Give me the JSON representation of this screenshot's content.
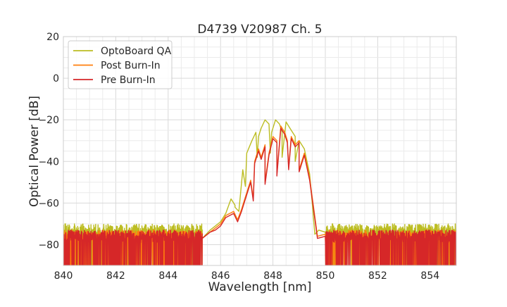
{
  "chart_data": {
    "type": "line",
    "title": "D4739 V20987 Ch. 5",
    "xlabel": "Wavelength [nm]",
    "ylabel": "Optical Power [dB]",
    "xlim": [
      840,
      855
    ],
    "ylim": [
      -90,
      20
    ],
    "xticks": [
      840,
      842,
      844,
      846,
      848,
      850,
      852,
      854
    ],
    "yticks": [
      20,
      0,
      -20,
      -40,
      -60,
      -80
    ],
    "xtick_labels": [
      "840",
      "842",
      "844",
      "846",
      "848",
      "850",
      "852",
      "854"
    ],
    "ytick_labels": [
      "20",
      "0",
      "−20",
      "−40",
      "−60",
      "−80"
    ],
    "grid": true,
    "legend_position": "top-left",
    "noise_floor_db": -76,
    "series": [
      {
        "name": "OptoBoard QA",
        "color": "#bcbd22",
        "points": [
          [
            845.3,
            -77
          ],
          [
            845.6,
            -73
          ],
          [
            845.8,
            -71
          ],
          [
            846.0,
            -69
          ],
          [
            846.2,
            -65
          ],
          [
            846.4,
            -58
          ],
          [
            846.55,
            -61
          ],
          [
            846.7,
            -64
          ],
          [
            846.85,
            -44
          ],
          [
            847.0,
            -36
          ],
          [
            847.2,
            -30
          ],
          [
            847.35,
            -26
          ],
          [
            847.45,
            -28
          ],
          [
            847.55,
            -24
          ],
          [
            847.7,
            -20
          ],
          [
            847.85,
            -22
          ],
          [
            847.95,
            -26
          ],
          [
            848.1,
            -20
          ],
          [
            848.25,
            -22
          ],
          [
            848.35,
            -26
          ],
          [
            848.5,
            -21
          ],
          [
            848.7,
            -25
          ],
          [
            848.85,
            -28
          ],
          [
            849.0,
            -30
          ],
          [
            849.2,
            -34
          ],
          [
            849.4,
            -46
          ],
          [
            849.5,
            -60
          ],
          [
            849.6,
            -75
          ],
          [
            849.75,
            -73
          ],
          [
            850.0,
            -74
          ]
        ],
        "nulls": [
          [
            846.55,
            -62
          ],
          [
            846.95,
            -52
          ],
          [
            847.4,
            -38
          ],
          [
            847.9,
            -36
          ],
          [
            848.35,
            -38
          ],
          [
            848.85,
            -40
          ]
        ]
      },
      {
        "name": "Post Burn-In",
        "color": "#ff7f0e",
        "points": [
          [
            845.3,
            -77
          ],
          [
            845.6,
            -74
          ],
          [
            845.8,
            -72
          ],
          [
            846.0,
            -70
          ],
          [
            846.2,
            -66
          ],
          [
            846.5,
            -64
          ],
          [
            846.65,
            -68
          ],
          [
            846.8,
            -63
          ],
          [
            847.0,
            -55
          ],
          [
            847.15,
            -49
          ],
          [
            847.3,
            -40
          ],
          [
            847.45,
            -34
          ],
          [
            847.55,
            -38
          ],
          [
            847.7,
            -32
          ],
          [
            847.85,
            -36
          ],
          [
            848.0,
            -28
          ],
          [
            848.15,
            -30
          ],
          [
            848.3,
            -23
          ],
          [
            848.45,
            -26
          ],
          [
            848.55,
            -30
          ],
          [
            848.7,
            -28
          ],
          [
            848.85,
            -32
          ],
          [
            849.0,
            -30
          ],
          [
            849.2,
            -36
          ],
          [
            849.4,
            -48
          ],
          [
            849.55,
            -62
          ],
          [
            849.7,
            -76
          ],
          [
            850.0,
            -75
          ]
        ],
        "nulls": [
          [
            846.65,
            -68
          ],
          [
            847.25,
            -58
          ],
          [
            847.7,
            -50
          ],
          [
            848.15,
            -46
          ],
          [
            848.6,
            -43
          ],
          [
            849.0,
            -44
          ]
        ]
      },
      {
        "name": "Pre Burn-In",
        "color": "#d62728",
        "points": [
          [
            845.3,
            -77
          ],
          [
            845.6,
            -74
          ],
          [
            845.8,
            -73
          ],
          [
            846.0,
            -71
          ],
          [
            846.2,
            -67
          ],
          [
            846.5,
            -65
          ],
          [
            846.65,
            -69
          ],
          [
            846.8,
            -64
          ],
          [
            847.0,
            -56
          ],
          [
            847.15,
            -50
          ],
          [
            847.3,
            -41
          ],
          [
            847.45,
            -35
          ],
          [
            847.55,
            -39
          ],
          [
            847.7,
            -33
          ],
          [
            847.85,
            -37
          ],
          [
            848.0,
            -29
          ],
          [
            848.15,
            -31
          ],
          [
            848.3,
            -24
          ],
          [
            848.45,
            -27
          ],
          [
            848.55,
            -31
          ],
          [
            848.7,
            -29
          ],
          [
            848.85,
            -33
          ],
          [
            849.0,
            -31
          ],
          [
            849.2,
            -37
          ],
          [
            849.4,
            -49
          ],
          [
            849.55,
            -63
          ],
          [
            849.7,
            -77
          ],
          [
            850.0,
            -76
          ]
        ],
        "nulls": [
          [
            846.65,
            -69
          ],
          [
            847.25,
            -59
          ],
          [
            847.7,
            -51
          ],
          [
            848.15,
            -47
          ],
          [
            848.6,
            -44
          ],
          [
            849.0,
            -45
          ]
        ]
      }
    ]
  }
}
